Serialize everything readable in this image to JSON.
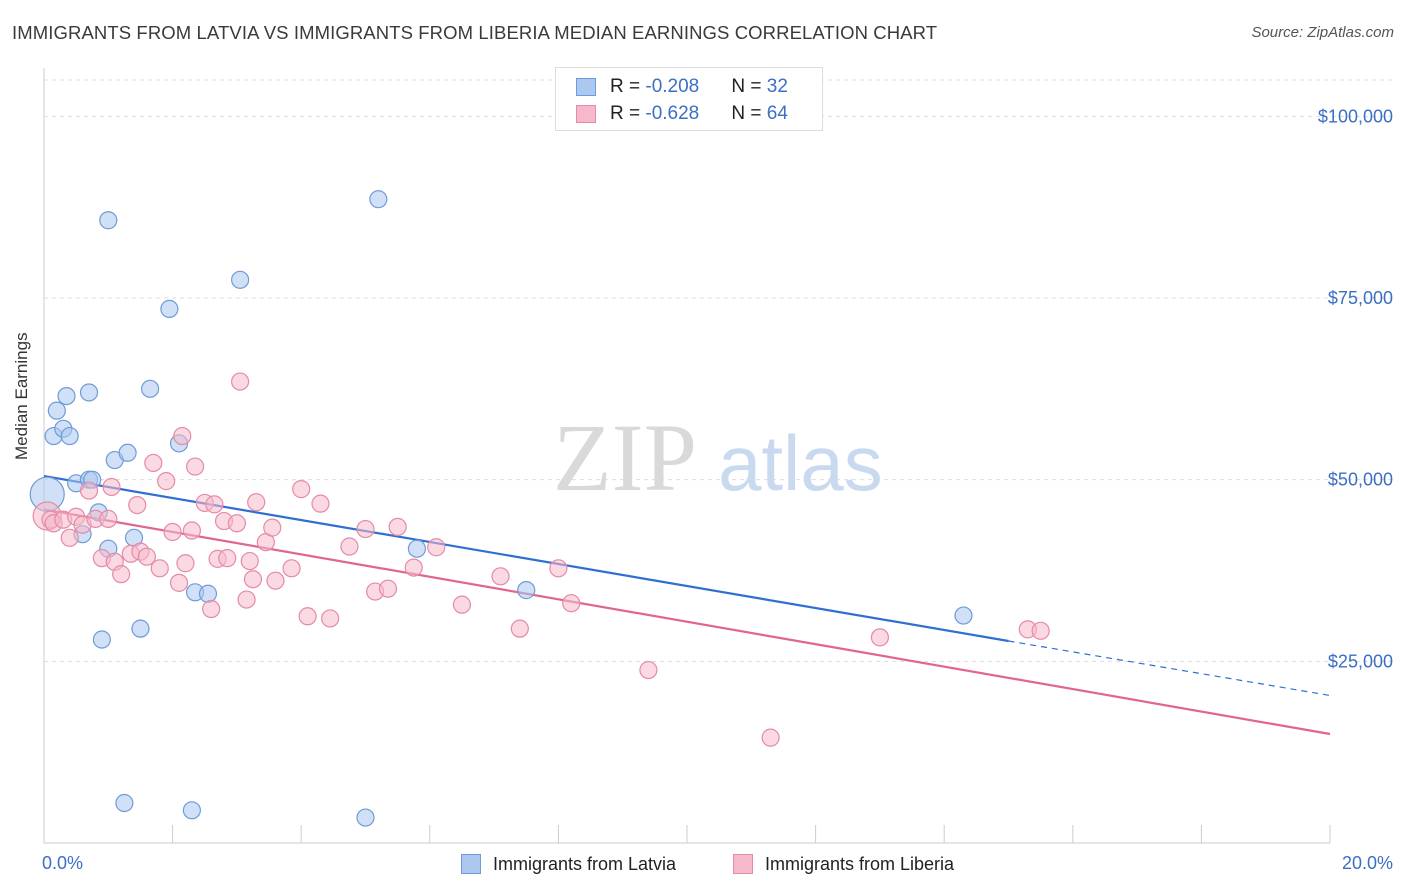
{
  "header": {
    "title": "IMMIGRANTS FROM LATVIA VS IMMIGRANTS FROM LIBERIA MEDIAN EARNINGS CORRELATION CHART",
    "source": "Source: ZipAtlas.com"
  },
  "stats": [
    {
      "r_label": "R = ",
      "r_value": "-0.208",
      "n_label": "N = ",
      "n_value": "32"
    },
    {
      "r_label": "R = ",
      "r_value": "-0.628",
      "n_label": "N = ",
      "n_value": "64"
    }
  ],
  "watermark": {
    "zip": "ZIP",
    "atlas": "atlas"
  },
  "colors": {
    "latvia_fill": "#aac8f0",
    "latvia_stroke": "#6f9bd6",
    "latvia_line": "#2f6fd0",
    "liberia_fill": "#f6b9cb",
    "liberia_stroke": "#e58aa7",
    "liberia_line": "#e06690",
    "axis_text": "#3b6fc4",
    "grid": "#dddddd"
  },
  "chart_data": {
    "type": "scatter",
    "title": "IMMIGRANTS FROM LATVIA VS IMMIGRANTS FROM LIBERIA MEDIAN EARNINGS CORRELATION CHART",
    "xlabel": "",
    "ylabel": "Median Earnings",
    "xlim": [
      0,
      20
    ],
    "ylim": [
      0,
      105000
    ],
    "x_tick_labels": [
      {
        "value": 0,
        "label": "0.0%"
      },
      {
        "value": 20,
        "label": "20.0%"
      }
    ],
    "y_ticks": [
      {
        "value": 25000,
        "label": "$25,000"
      },
      {
        "value": 50000,
        "label": "$50,000"
      },
      {
        "value": 75000,
        "label": "$75,000"
      },
      {
        "value": 100000,
        "label": "$100,000"
      }
    ],
    "legend_placement": "bottom-center",
    "series": [
      {
        "name": "Immigrants from Latvia",
        "color_key": "latvia",
        "trend": {
          "x0": 0,
          "y0": 50500,
          "x1": 15,
          "y1": 27800,
          "dash_to_x": 20,
          "dash_to_y": 20300
        },
        "points": [
          [
            0.05,
            48000
          ],
          [
            0.15,
            56000
          ],
          [
            0.2,
            59500
          ],
          [
            0.3,
            57000
          ],
          [
            0.35,
            61500
          ],
          [
            0.4,
            56000
          ],
          [
            0.5,
            49500
          ],
          [
            0.6,
            42500
          ],
          [
            0.7,
            50000
          ],
          [
            0.7,
            62000
          ],
          [
            0.75,
            50000
          ],
          [
            0.85,
            45500
          ],
          [
            0.9,
            28000
          ],
          [
            1.0,
            85700
          ],
          [
            1.0,
            40500
          ],
          [
            1.1,
            52700
          ],
          [
            1.25,
            5500
          ],
          [
            1.3,
            53700
          ],
          [
            1.4,
            42000
          ],
          [
            1.5,
            29500
          ],
          [
            1.65,
            62500
          ],
          [
            1.95,
            73500
          ],
          [
            2.1,
            55000
          ],
          [
            2.3,
            4500
          ],
          [
            2.35,
            34500
          ],
          [
            2.55,
            34300
          ],
          [
            3.05,
            77500
          ],
          [
            5.0,
            3500
          ],
          [
            5.2,
            88600
          ],
          [
            5.8,
            40500
          ],
          [
            7.5,
            34800
          ],
          [
            14.3,
            31300
          ]
        ]
      },
      {
        "name": "Immigrants from Liberia",
        "color_key": "liberia",
        "trend": {
          "x0": 0,
          "y0": 45900,
          "x1": 20,
          "y1": 15000
        },
        "points": [
          [
            0.05,
            45000
          ],
          [
            0.1,
            44500
          ],
          [
            0.15,
            44000
          ],
          [
            0.3,
            44500
          ],
          [
            0.4,
            42000
          ],
          [
            0.5,
            44900
          ],
          [
            0.6,
            43800
          ],
          [
            0.7,
            48500
          ],
          [
            0.8,
            44600
          ],
          [
            0.9,
            39200
          ],
          [
            1.0,
            44600
          ],
          [
            1.05,
            49000
          ],
          [
            1.1,
            38700
          ],
          [
            1.2,
            37000
          ],
          [
            1.35,
            39800
          ],
          [
            1.45,
            46500
          ],
          [
            1.5,
            40100
          ],
          [
            1.6,
            39400
          ],
          [
            1.7,
            52300
          ],
          [
            1.8,
            37800
          ],
          [
            1.9,
            49800
          ],
          [
            2.0,
            42800
          ],
          [
            2.1,
            35800
          ],
          [
            2.15,
            56000
          ],
          [
            2.2,
            38500
          ],
          [
            2.3,
            43000
          ],
          [
            2.35,
            51800
          ],
          [
            2.5,
            46800
          ],
          [
            2.6,
            32200
          ],
          [
            2.65,
            46600
          ],
          [
            2.7,
            39100
          ],
          [
            2.8,
            44300
          ],
          [
            2.85,
            39200
          ],
          [
            3.0,
            44000
          ],
          [
            3.05,
            63500
          ],
          [
            3.15,
            33500
          ],
          [
            3.2,
            38800
          ],
          [
            3.25,
            36300
          ],
          [
            3.3,
            46900
          ],
          [
            3.45,
            41400
          ],
          [
            3.55,
            43400
          ],
          [
            3.6,
            36100
          ],
          [
            3.85,
            37800
          ],
          [
            4.0,
            48700
          ],
          [
            4.1,
            31200
          ],
          [
            4.3,
            46700
          ],
          [
            4.45,
            30900
          ],
          [
            4.75,
            40800
          ],
          [
            5.0,
            43200
          ],
          [
            5.15,
            34600
          ],
          [
            5.35,
            35000
          ],
          [
            5.5,
            43500
          ],
          [
            5.75,
            37900
          ],
          [
            6.1,
            40700
          ],
          [
            6.5,
            32800
          ],
          [
            7.1,
            36700
          ],
          [
            7.4,
            29500
          ],
          [
            8.0,
            37800
          ],
          [
            8.2,
            33000
          ],
          [
            9.4,
            23800
          ],
          [
            11.3,
            14500
          ],
          [
            13.0,
            28300
          ],
          [
            15.3,
            29400
          ],
          [
            15.5,
            29200
          ]
        ]
      }
    ]
  },
  "legend": [
    {
      "label": "Immigrants from Latvia"
    },
    {
      "label": "Immigrants from Liberia"
    }
  ]
}
